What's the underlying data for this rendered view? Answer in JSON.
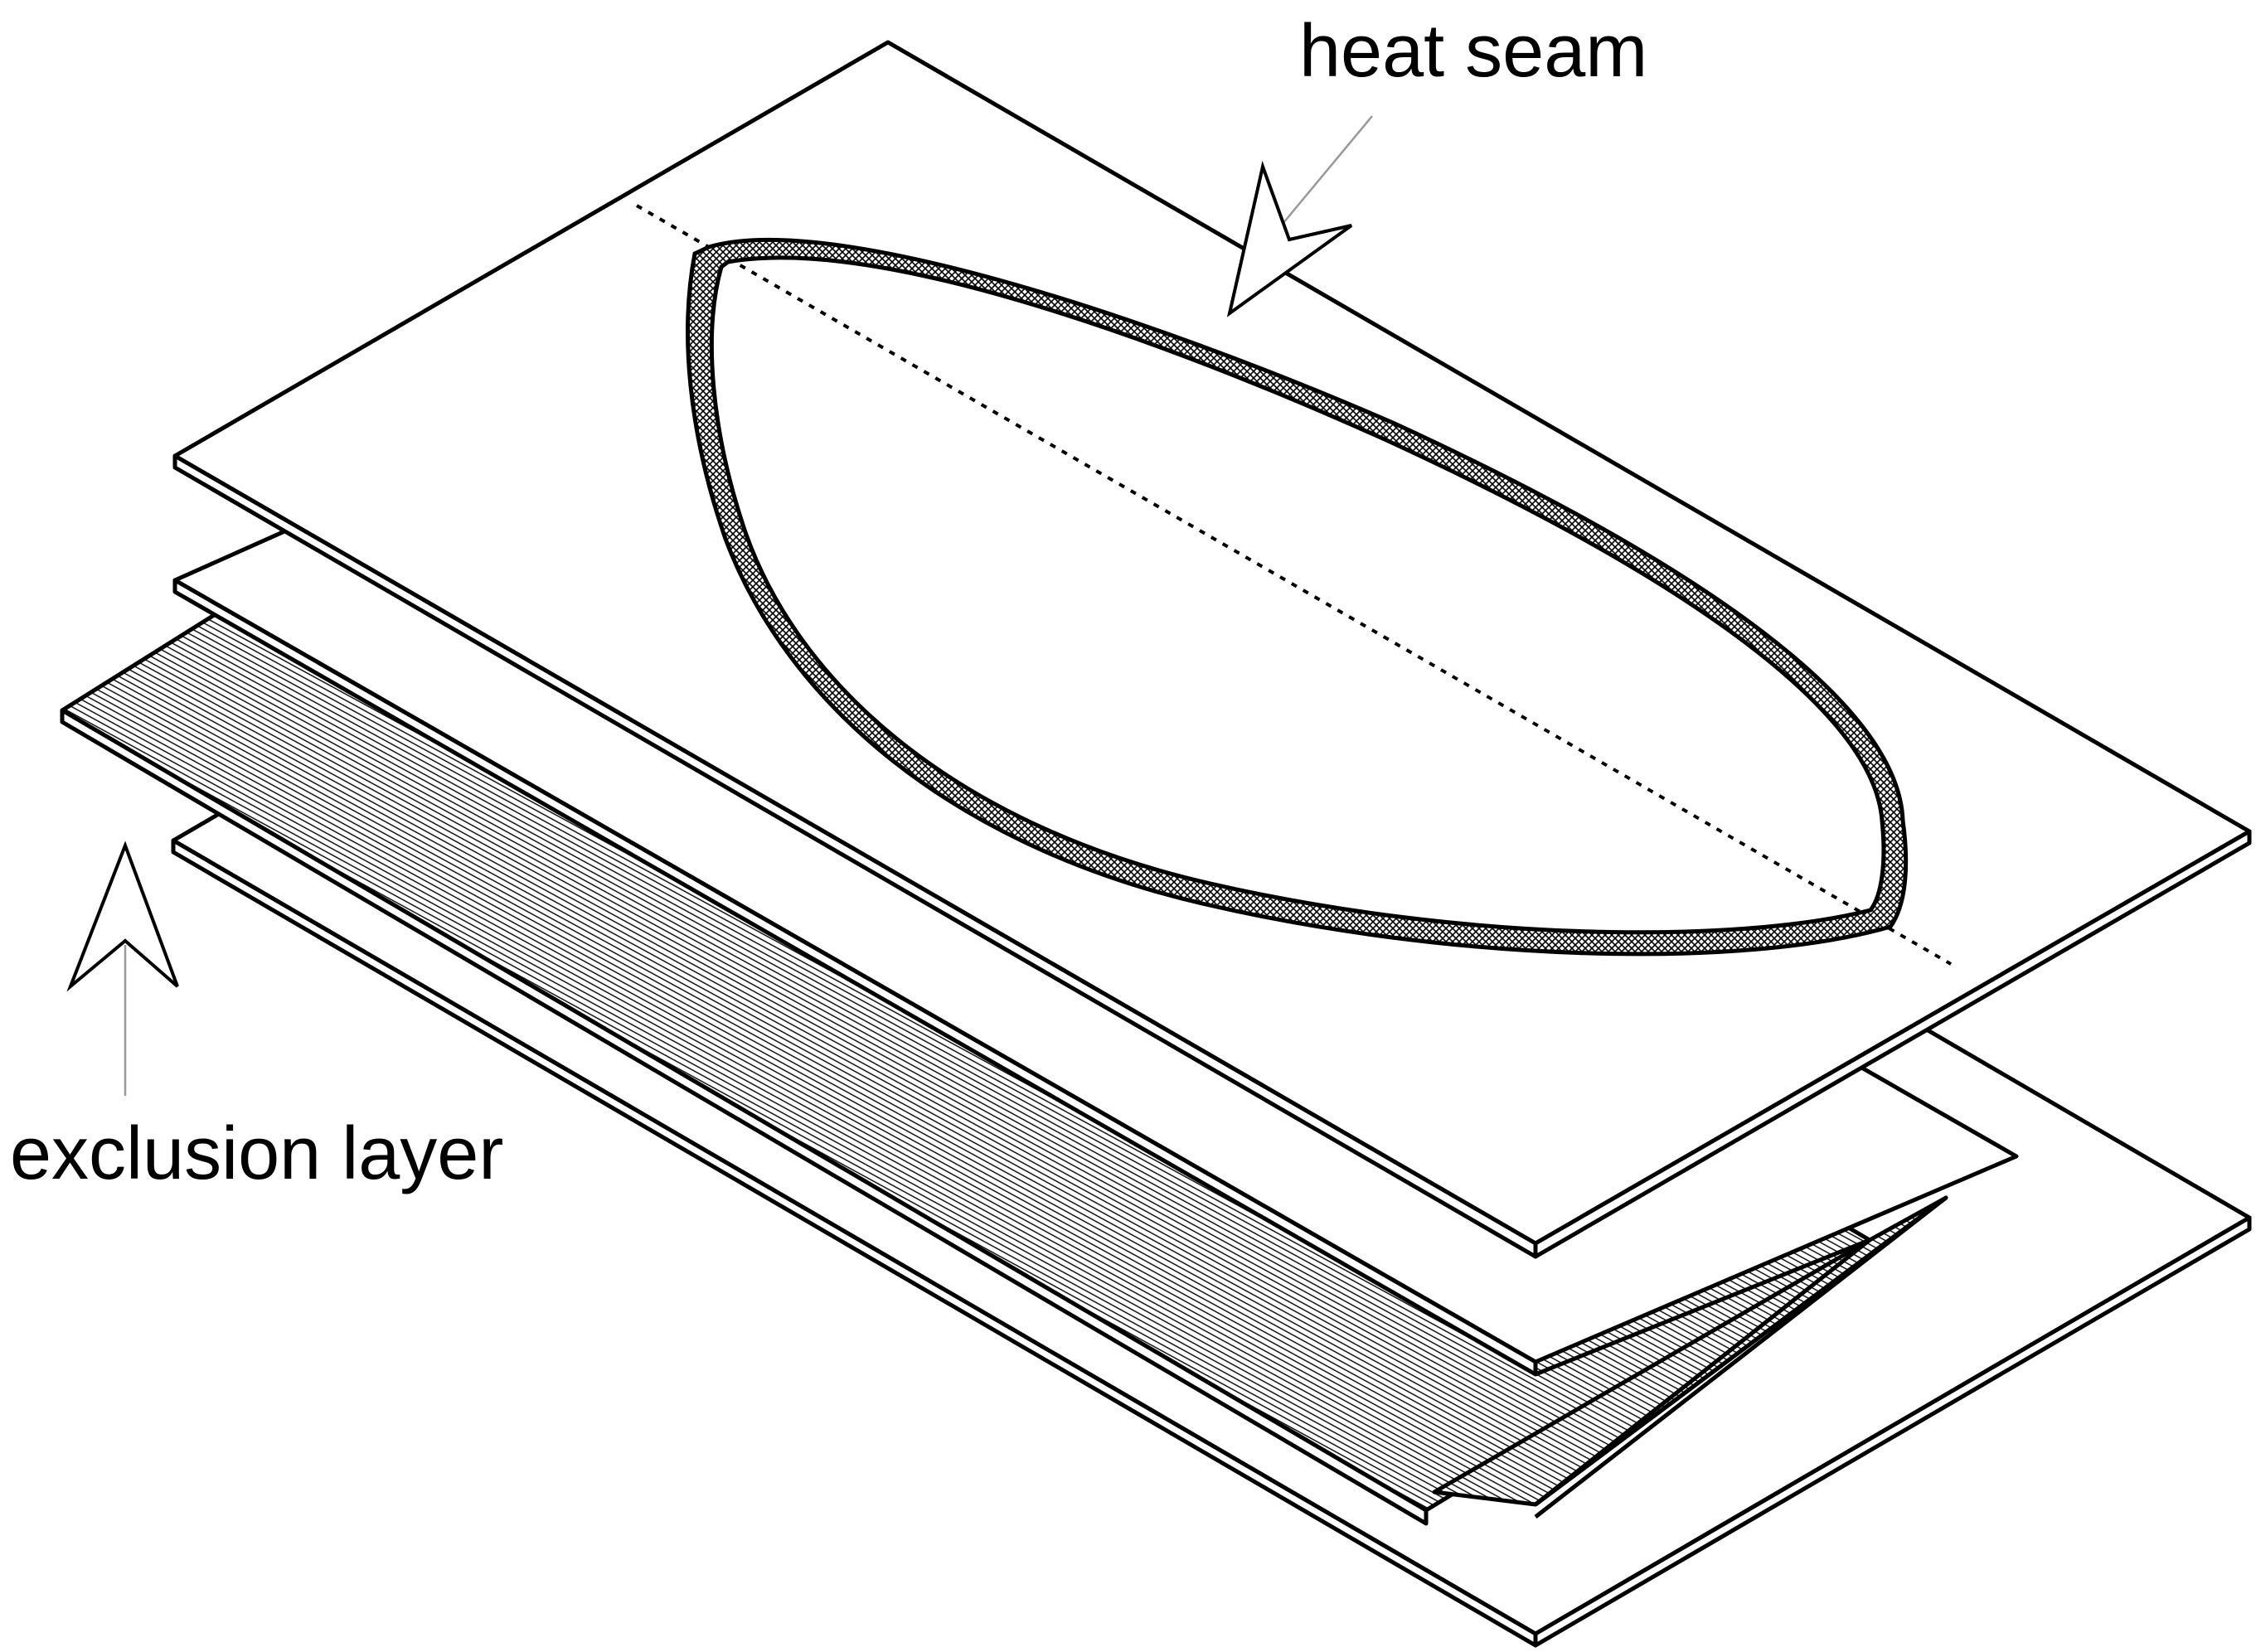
{
  "labels": {
    "heat_seam": "heat seam",
    "exclusion_layer": "exclusion layer"
  },
  "colors": {
    "ink": "#000000",
    "paper": "#ffffff",
    "seam_fill": "#7a7a7a",
    "exclusion_fill": "#cfcfcf"
  }
}
